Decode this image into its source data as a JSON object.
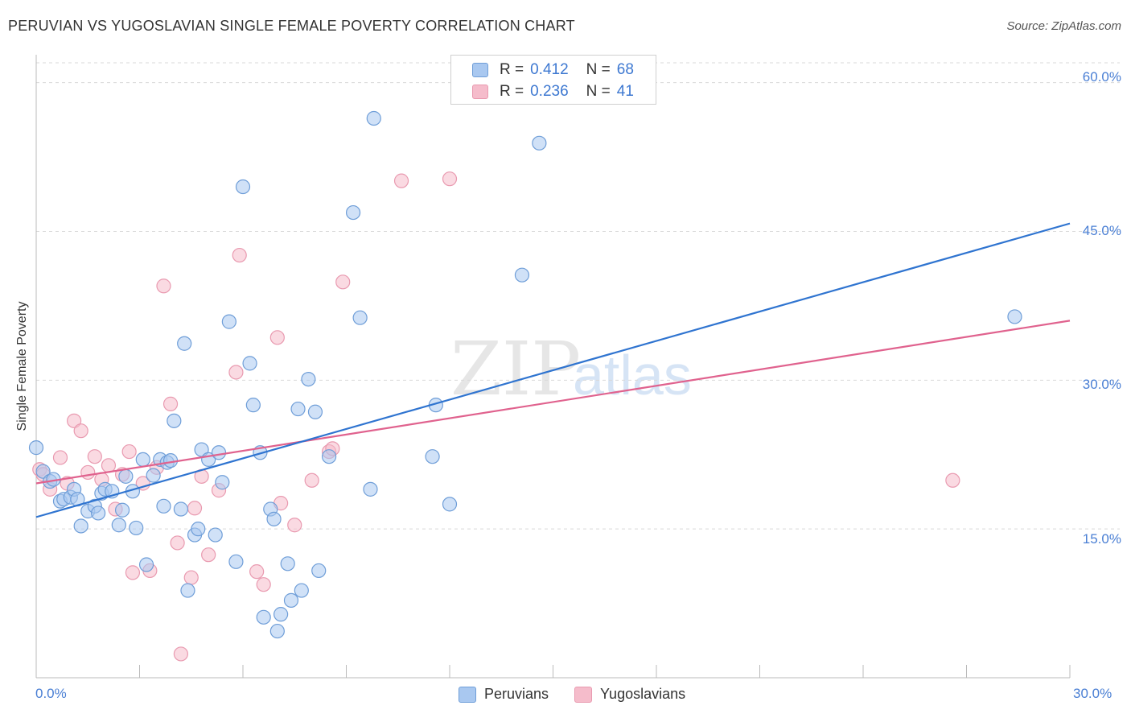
{
  "title": "PERUVIAN VS YUGOSLAVIAN SINGLE FEMALE POVERTY CORRELATION CHART",
  "source": "Source: ZipAtlas.com",
  "watermark": {
    "zip": "ZIP",
    "atlas": "atlas"
  },
  "legend_top": {
    "rows": [
      {
        "r_label": "R =",
        "r_value": "0.412",
        "n_label": "N =",
        "n_value": "68"
      },
      {
        "r_label": "R =",
        "r_value": "0.236",
        "n_label": "N =",
        "n_value": "41"
      }
    ]
  },
  "legend_bottom": [
    "Peruvians",
    "Yugoslavians"
  ],
  "colors": {
    "peruvians_fill": "#a9c8f0",
    "peruvians_stroke": "#6f9ed8",
    "peruvians_line": "#2f74d0",
    "yugoslavians_fill": "#f5bccb",
    "yugoslavians_stroke": "#e99ab0",
    "yugoslavians_line": "#e0628e",
    "tick_text": "#4a7fd4",
    "grid": "#d9d9d9"
  },
  "chart_data": {
    "type": "scatter",
    "title": "PERUVIAN VS YUGOSLAVIAN SINGLE FEMALE POVERTY CORRELATION CHART",
    "xlabel": "",
    "ylabel": "Single Female Poverty",
    "xlim": [
      0,
      30
    ],
    "ylim": [
      0,
      62
    ],
    "x_tick_labels": [
      "0.0%",
      "30.0%"
    ],
    "y_ticks": [
      15,
      30,
      45,
      60
    ],
    "y_tick_labels": [
      "15.0%",
      "30.0%",
      "45.0%",
      "60.0%"
    ],
    "grid": true,
    "legend_position": "top-center",
    "series": [
      {
        "name": "Peruvians",
        "r": 0.412,
        "n": 68,
        "trend": {
          "x": [
            0,
            30
          ],
          "y": [
            16.2,
            45.8
          ]
        },
        "points": [
          [
            0.0,
            23.2
          ],
          [
            0.2,
            20.8
          ],
          [
            0.4,
            19.8
          ],
          [
            0.5,
            20.0
          ],
          [
            0.7,
            17.8
          ],
          [
            0.8,
            18.0
          ],
          [
            1.0,
            18.2
          ],
          [
            1.1,
            19.0
          ],
          [
            1.2,
            18.0
          ],
          [
            1.3,
            15.3
          ],
          [
            1.5,
            16.8
          ],
          [
            1.7,
            17.3
          ],
          [
            1.8,
            16.6
          ],
          [
            1.9,
            18.6
          ],
          [
            2.0,
            19.0
          ],
          [
            2.2,
            18.8
          ],
          [
            2.4,
            15.4
          ],
          [
            2.5,
            16.9
          ],
          [
            2.6,
            20.3
          ],
          [
            2.8,
            18.8
          ],
          [
            2.9,
            15.1
          ],
          [
            3.1,
            22.0
          ],
          [
            3.2,
            11.4
          ],
          [
            3.4,
            20.4
          ],
          [
            3.6,
            22.0
          ],
          [
            3.7,
            17.3
          ],
          [
            3.8,
            21.7
          ],
          [
            3.9,
            21.9
          ],
          [
            4.0,
            25.9
          ],
          [
            4.2,
            17.0
          ],
          [
            4.3,
            33.7
          ],
          [
            4.4,
            8.8
          ],
          [
            4.6,
            14.4
          ],
          [
            4.7,
            15.0
          ],
          [
            4.8,
            23.0
          ],
          [
            5.0,
            22.0
          ],
          [
            5.2,
            14.4
          ],
          [
            5.3,
            22.7
          ],
          [
            5.4,
            19.7
          ],
          [
            5.6,
            35.9
          ],
          [
            5.8,
            11.7
          ],
          [
            6.0,
            49.5
          ],
          [
            6.2,
            31.7
          ],
          [
            6.3,
            27.5
          ],
          [
            6.5,
            22.7
          ],
          [
            6.6,
            6.1
          ],
          [
            6.8,
            17.0
          ],
          [
            6.9,
            16.0
          ],
          [
            7.0,
            4.7
          ],
          [
            7.1,
            6.4
          ],
          [
            7.3,
            11.5
          ],
          [
            7.4,
            7.8
          ],
          [
            7.6,
            27.1
          ],
          [
            7.7,
            8.8
          ],
          [
            7.9,
            30.1
          ],
          [
            8.1,
            26.8
          ],
          [
            8.2,
            10.8
          ],
          [
            8.5,
            22.3
          ],
          [
            9.2,
            46.9
          ],
          [
            9.4,
            36.3
          ],
          [
            9.7,
            19.0
          ],
          [
            9.8,
            56.4
          ],
          [
            11.6,
            27.5
          ],
          [
            11.5,
            22.3
          ],
          [
            12.0,
            17.5
          ],
          [
            14.1,
            40.6
          ],
          [
            14.6,
            53.9
          ],
          [
            28.4,
            36.4
          ]
        ]
      },
      {
        "name": "Yugoslavians",
        "r": 0.236,
        "n": 41,
        "trend": {
          "x": [
            0,
            30
          ],
          "y": [
            19.6,
            36.0
          ]
        },
        "points": [
          [
            0.1,
            21.0
          ],
          [
            0.2,
            20.5
          ],
          [
            0.4,
            19.0
          ],
          [
            0.7,
            22.2
          ],
          [
            0.9,
            19.6
          ],
          [
            1.1,
            25.9
          ],
          [
            1.3,
            24.9
          ],
          [
            1.5,
            20.7
          ],
          [
            1.7,
            22.3
          ],
          [
            1.9,
            20.0
          ],
          [
            2.1,
            21.4
          ],
          [
            2.3,
            17.0
          ],
          [
            2.5,
            20.5
          ],
          [
            2.7,
            22.8
          ],
          [
            2.8,
            10.6
          ],
          [
            3.1,
            19.6
          ],
          [
            3.3,
            10.8
          ],
          [
            3.5,
            21.2
          ],
          [
            3.7,
            39.5
          ],
          [
            3.9,
            27.6
          ],
          [
            4.1,
            13.6
          ],
          [
            4.2,
            2.4
          ],
          [
            4.5,
            10.1
          ],
          [
            4.6,
            17.1
          ],
          [
            4.8,
            20.3
          ],
          [
            5.0,
            12.4
          ],
          [
            5.3,
            18.9
          ],
          [
            5.8,
            30.8
          ],
          [
            5.9,
            42.6
          ],
          [
            6.4,
            10.7
          ],
          [
            6.6,
            9.4
          ],
          [
            7.0,
            34.3
          ],
          [
            7.1,
            17.6
          ],
          [
            7.5,
            15.4
          ],
          [
            8.0,
            19.9
          ],
          [
            8.5,
            22.8
          ],
          [
            8.6,
            23.1
          ],
          [
            8.9,
            39.9
          ],
          [
            10.6,
            50.1
          ],
          [
            12.0,
            50.3
          ],
          [
            26.6,
            19.9
          ]
        ]
      }
    ]
  }
}
